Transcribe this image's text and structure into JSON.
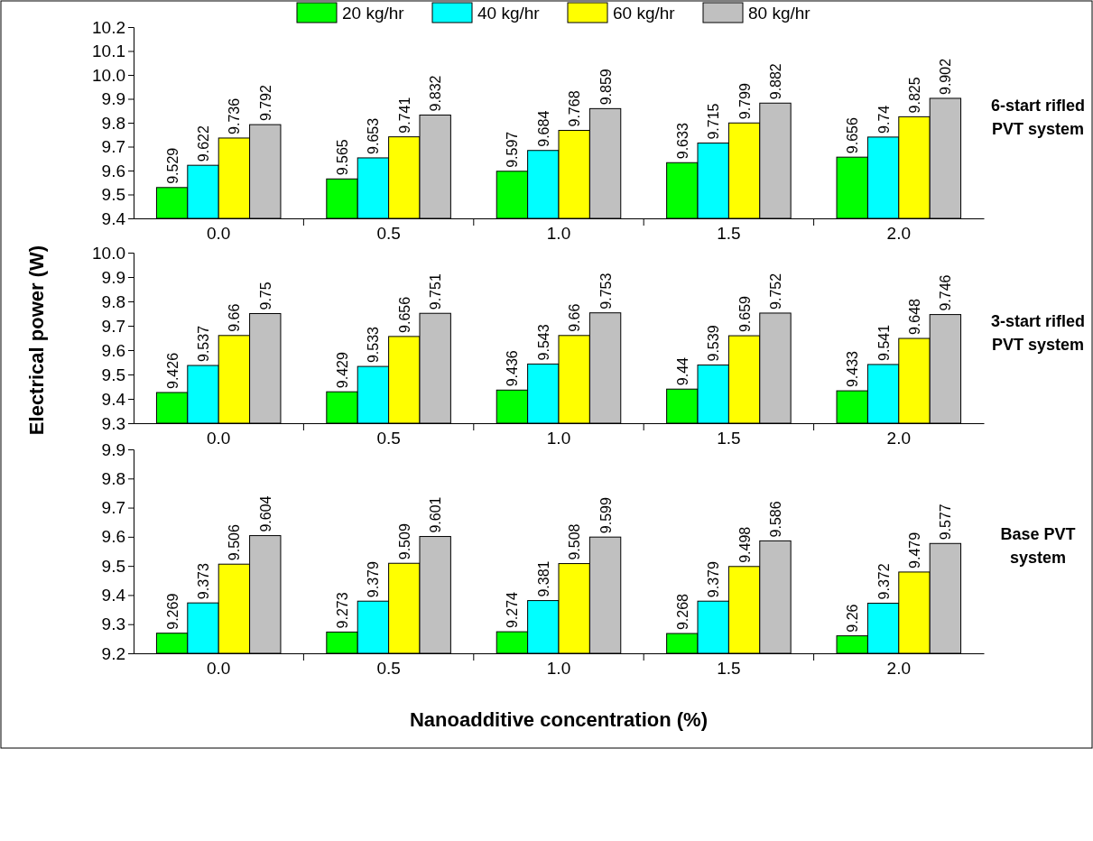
{
  "chart_data": [
    {
      "type": "bar",
      "categories": [
        "0.0",
        "0.5",
        "1.0",
        "1.5",
        "2.0"
      ],
      "ylim": [
        9.4,
        10.2
      ],
      "yticks": [
        9.4,
        9.5,
        9.6,
        9.7,
        9.8,
        9.9,
        {
          "value": 10,
          "label": "10.0"
        },
        10.1,
        10.2
      ],
      "data_labels": true,
      "legend": "top",
      "annotations": [
        "6-start rifled PVT system"
      ],
      "series": [
        {
          "name": "20 kg/hr",
          "color": "#00ff00",
          "values": [
            9.529,
            9.565,
            9.597,
            9.633,
            9.656
          ]
        },
        {
          "name": "40 kg/hr",
          "color": "#00ffff",
          "values": [
            9.622,
            9.653,
            9.684,
            9.715,
            9.74
          ]
        },
        {
          "name": "60 kg/hr",
          "color": "#ffff00",
          "values": [
            9.736,
            9.741,
            9.768,
            9.799,
            9.825
          ]
        },
        {
          "name": "80 kg/hr",
          "color": "#c0c0c0",
          "values": [
            9.792,
            9.832,
            9.859,
            9.882,
            9.902
          ]
        }
      ]
    },
    {
      "type": "bar",
      "categories": [
        "0.0",
        "0.5",
        "1.0",
        "1.5",
        "2.0"
      ],
      "ylim": [
        9.3,
        10.0
      ],
      "yticks": [
        9.3,
        9.4,
        9.5,
        9.6,
        9.7,
        9.8,
        9.9,
        {
          "value": 10,
          "label": "10.0"
        }
      ],
      "data_labels": true,
      "ylabel": "Electrical power (W)",
      "annotations": [
        "3-start rifled PVT system"
      ],
      "series": [
        {
          "color": "#00ff00",
          "values": [
            9.426,
            9.429,
            9.436,
            9.44,
            9.433
          ]
        },
        {
          "color": "#00ffff",
          "values": [
            9.537,
            9.533,
            9.543,
            9.539,
            9.541
          ]
        },
        {
          "color": "#ffff00",
          "values": [
            9.66,
            9.656,
            9.66,
            9.659,
            9.648
          ]
        },
        {
          "color": "#c0c0c0",
          "values": [
            9.75,
            9.751,
            9.753,
            9.752,
            9.746
          ]
        }
      ]
    },
    {
      "type": "bar",
      "categories": [
        "0.0",
        "0.5",
        "1.0",
        "1.5",
        "2.0"
      ],
      "ylim": [
        9.2,
        9.9
      ],
      "yticks": [
        9.2,
        9.3,
        9.4,
        9.5,
        9.6,
        9.7,
        9.8,
        9.9
      ],
      "data_labels": true,
      "xlabel": "Nanoadditive concentration (%)",
      "annotations": [
        "Base PVT system"
      ],
      "series": [
        {
          "color": "#00ff00",
          "values": [
            9.269,
            9.273,
            9.274,
            9.268,
            9.26
          ]
        },
        {
          "color": "#00ffff",
          "values": [
            9.373,
            9.379,
            9.381,
            9.379,
            9.372
          ]
        },
        {
          "color": "#ffff00",
          "values": [
            9.506,
            9.509,
            9.508,
            9.498,
            9.479
          ]
        },
        {
          "color": "#c0c0c0",
          "values": [
            9.604,
            9.601,
            9.599,
            9.586,
            9.577
          ]
        }
      ]
    }
  ]
}
